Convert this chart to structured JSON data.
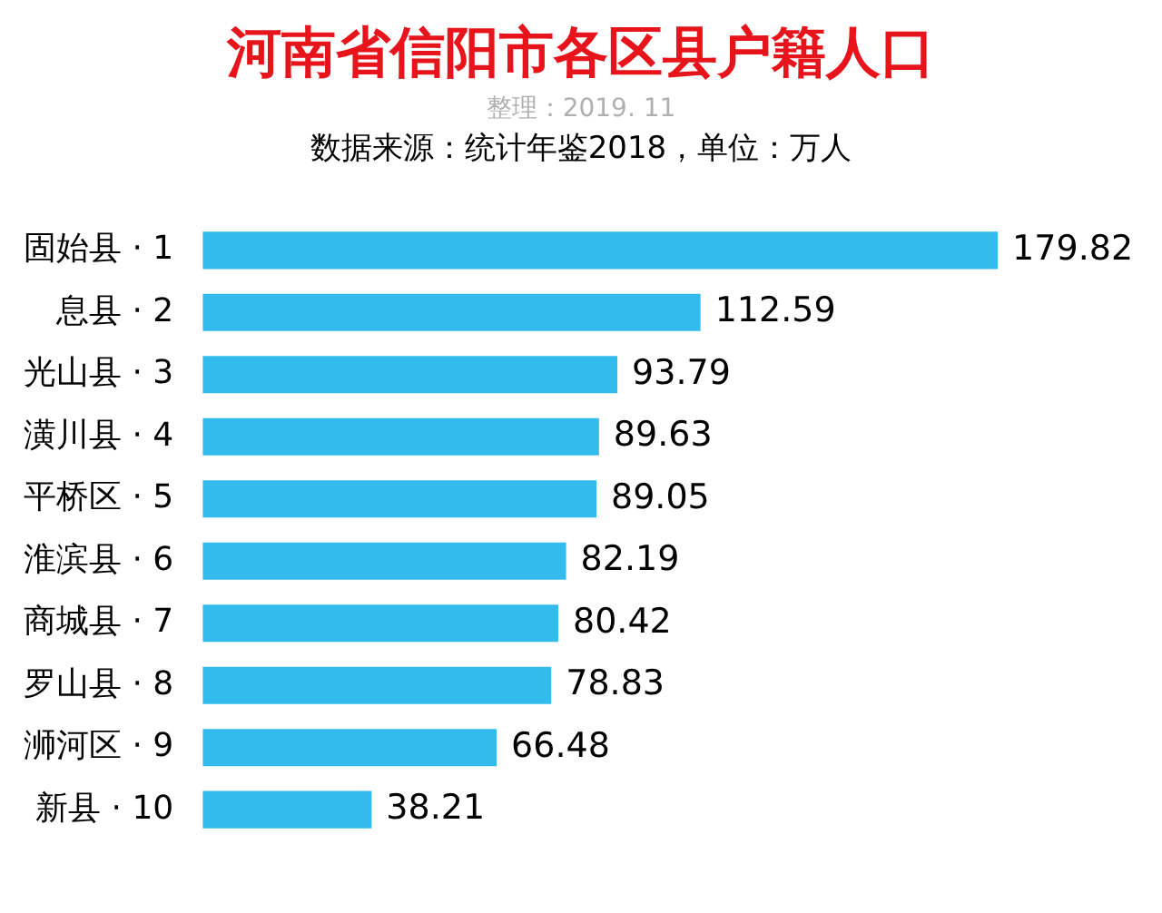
{
  "chart_data": {
    "type": "bar",
    "orientation": "horizontal",
    "title": "河南省信阳市各区县户籍人口",
    "subtitle": "整理：2019. 11",
    "annotations": [
      "数据来源：统计年鉴2018，单位：万人"
    ],
    "categories": [
      "固始县 · 1",
      "息县 · 2",
      "光山县 · 3",
      "潢川县 · 4",
      "平桥区 · 5",
      "淮滨县 · 6",
      "商城县 · 7",
      "罗山县 · 8",
      "浉河区 · 9",
      "新县 · 10"
    ],
    "values": [
      179.82,
      112.59,
      93.79,
      89.63,
      89.05,
      82.19,
      80.42,
      78.83,
      66.48,
      38.21
    ],
    "color": "#33bbee",
    "data_labels": true,
    "legend": false
  }
}
